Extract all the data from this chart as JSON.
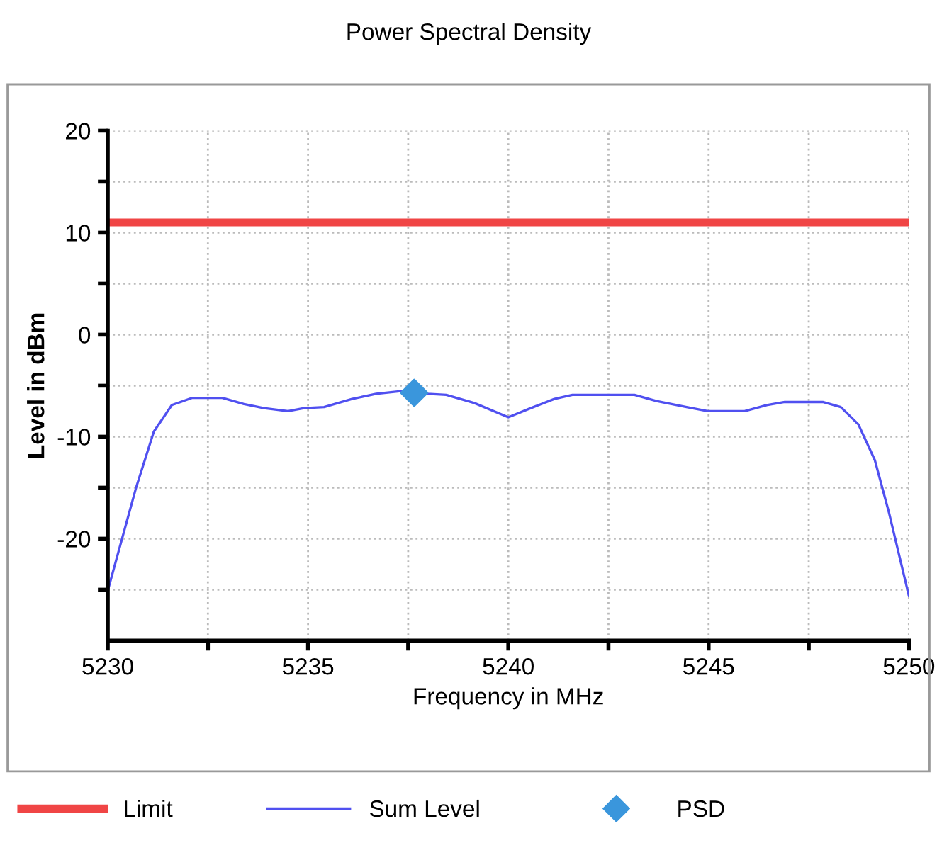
{
  "chart_data": {
    "type": "line",
    "title": "Power Spectral Density",
    "xlabel": "Frequency in MHz",
    "ylabel": "Level in dBm",
    "series": [
      {
        "name": "Limit",
        "color": "#f04545",
        "x": [
          5230,
          5250
        ],
        "values": [
          11,
          11
        ]
      },
      {
        "name": "Sum Level",
        "color": "#5050f0",
        "x": [
          5230,
          5230.7,
          5231.15,
          5231.6,
          5232.1,
          5232.86,
          5233.4,
          5233.9,
          5234.5,
          5234.9,
          5235.4,
          5236.1,
          5236.7,
          5237.4,
          5237.98,
          5238.45,
          5239.15,
          5240,
          5240.56,
          5241.15,
          5241.6,
          5243.15,
          5243.7,
          5244.45,
          5244.98,
          5245.9,
          5246.45,
          5246.9,
          5247.85,
          5248.3,
          5248.74,
          5249.15,
          5249.5,
          5250
        ],
        "values": [
          -25.1,
          -15.1,
          -9.5,
          -6.9,
          -6.2,
          -6.2,
          -6.8,
          -7.2,
          -7.5,
          -7.2,
          -7.1,
          -6.3,
          -5.8,
          -5.5,
          -5.8,
          -5.9,
          -6.7,
          -8.1,
          -7.2,
          -6.3,
          -5.9,
          -5.9,
          -6.5,
          -7.1,
          -7.5,
          -7.5,
          -6.9,
          -6.6,
          -6.6,
          -7.1,
          -8.8,
          -12.3,
          -17.4,
          -25.6
        ]
      },
      {
        "name": "PSD",
        "type": "scatter",
        "marker": "diamond",
        "color": "#3a96dc",
        "x": [
          5237.65
        ],
        "values": [
          -5.7
        ]
      }
    ],
    "xlim": [
      5230,
      5250
    ],
    "ylim": [
      -30,
      20
    ],
    "xticks": [
      5230,
      {
        "value": 5232.5,
        "label": null
      },
      5235,
      {
        "value": 5237.5,
        "label": null
      },
      5240,
      {
        "value": 5242.5,
        "label": null
      },
      5245,
      {
        "value": 5247.5,
        "label": null
      },
      5250
    ],
    "yticks": [
      {
        "value": -25,
        "label": null
      },
      -20,
      {
        "value": -15,
        "label": null
      },
      -10,
      {
        "value": -5,
        "label": null
      },
      0,
      {
        "value": 5,
        "label": null
      },
      10,
      {
        "value": 15,
        "label": null
      },
      20
    ],
    "grid": true,
    "legend": "bottom",
    "line_style": "solid"
  }
}
